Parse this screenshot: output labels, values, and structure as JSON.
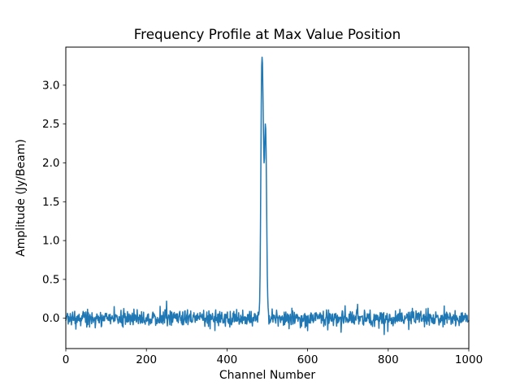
{
  "chart_data": {
    "type": "line",
    "title": "Frequency Profile at Max Value Position",
    "xlabel": "Channel Number",
    "ylabel": "Amplitude (Jy/Beam)",
    "xlim": [
      0,
      1000
    ],
    "ylim": [
      -0.39,
      3.49
    ],
    "xticks": {
      "values": [
        0,
        200,
        400,
        600,
        800,
        1000
      ],
      "labels": [
        "0",
        "200",
        "400",
        "600",
        "800",
        "1000"
      ]
    },
    "yticks": {
      "values": [
        0.0,
        0.5,
        1.0,
        1.5,
        2.0,
        2.5,
        3.0
      ],
      "labels": [
        "0.0",
        "0.5",
        "1.0",
        "1.5",
        "2.0",
        "2.5",
        "3.0"
      ]
    },
    "grid": false,
    "legend": null,
    "background_color": "#ffffff",
    "line_color": "#1f77b4",
    "line_width": 1.5,
    "n_points": 1001,
    "baseline_noise": {
      "mean": 0.0,
      "sigma": 0.05,
      "clamp": 0.22,
      "seed": 20,
      "description": "zero-mean gaussian noise baseline spanning channels 0-1000"
    },
    "peak_profile": [
      [
        479,
        0.05
      ],
      [
        480,
        0.1
      ],
      [
        481,
        0.22
      ],
      [
        482,
        0.55
      ],
      [
        483,
        1.15
      ],
      [
        484,
        1.95
      ],
      [
        485,
        2.75
      ],
      [
        486,
        3.25
      ],
      [
        487,
        3.36
      ],
      [
        488,
        3.28
      ],
      [
        489,
        2.95
      ],
      [
        490,
        2.55
      ],
      [
        491,
        2.18
      ],
      [
        492,
        2.0
      ],
      [
        493,
        2.06
      ],
      [
        494,
        2.32
      ],
      [
        495,
        2.5
      ],
      [
        496,
        2.44
      ],
      [
        497,
        2.18
      ],
      [
        498,
        1.65
      ],
      [
        499,
        1.05
      ],
      [
        500,
        0.55
      ],
      [
        501,
        0.28
      ],
      [
        502,
        0.14
      ],
      [
        503,
        0.07
      ]
    ],
    "noise_spikes": [
      [
        120,
        0.15
      ],
      [
        250,
        0.22
      ],
      [
        512,
        0.12
      ],
      [
        600,
        -0.16
      ],
      [
        650,
        -0.15
      ],
      [
        683,
        -0.18
      ],
      [
        724,
        0.18
      ],
      [
        790,
        -0.21
      ]
    ],
    "peak_summary": {
      "main_peak_channel": 487,
      "main_peak_amplitude": 3.36,
      "secondary_peak_channel": 495,
      "secondary_peak_amplitude": 2.5,
      "baseline_level": 0.0
    }
  }
}
